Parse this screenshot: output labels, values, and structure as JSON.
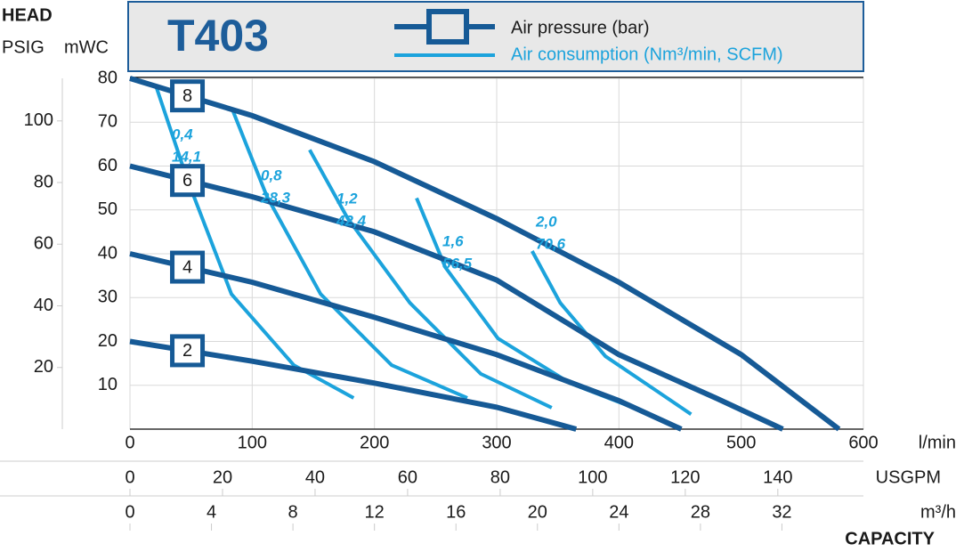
{
  "chart_data": {
    "type": "line",
    "title": "T403",
    "head_label": "HEAD",
    "psig_label": "PSIG",
    "mwc_label": "mWC",
    "x_label": "l/min",
    "x2_label": "USGPM",
    "x3_label": "m³/h",
    "capacity_label": "CAPACITY",
    "legend": {
      "pressure": "Air pressure (bar)",
      "consumption": "Air consumption (Nm³/min, SCFM)"
    },
    "pressure_color": "#165a96",
    "consumption_color": "#1ca3dc",
    "grid": true,
    "xlim": [
      0,
      600
    ],
    "xticks": [
      0,
      100,
      200,
      300,
      400,
      500,
      600
    ],
    "x2lim": [
      0,
      158.5
    ],
    "x2ticks": [
      0,
      20,
      40,
      60,
      80,
      100,
      120,
      140
    ],
    "x3lim": [
      0,
      36
    ],
    "x3ticks": [
      0,
      4,
      8,
      12,
      16,
      20,
      24,
      28,
      32
    ],
    "ylim": [
      0,
      80
    ],
    "yticks": [
      10,
      20,
      30,
      40,
      50,
      60,
      70,
      80
    ],
    "psig_lim": [
      0,
      113.8
    ],
    "psig_ticks": [
      20,
      40,
      60,
      80,
      100
    ],
    "pressure_series": [
      {
        "name": "8",
        "x": [
          0,
          100,
          200,
          300,
          400,
          500,
          580
        ],
        "values": [
          80,
          71.5,
          61,
          48,
          33.5,
          17,
          0
        ]
      },
      {
        "name": "6",
        "x": [
          0,
          100,
          200,
          300,
          400,
          480,
          534
        ],
        "values": [
          60,
          53,
          45,
          34,
          17,
          7,
          0
        ]
      },
      {
        "name": "4",
        "x": [
          0,
          100,
          200,
          300,
          400,
          451
        ],
        "values": [
          40,
          33.5,
          25.5,
          17,
          6.5,
          0
        ]
      },
      {
        "name": "2",
        "x": [
          0,
          100,
          200,
          300,
          365
        ],
        "values": [
          20,
          15.5,
          10.5,
          5,
          0
        ]
      }
    ],
    "consumption_series": [
      {
        "name": "0,4",
        "scfm": "14,1",
        "x": [
          21,
          46.6,
          83,
          134,
          183
        ],
        "values": [
          78.5,
          57.2,
          30.8,
          14.6,
          7.1
        ]
      },
      {
        "name": "0,8",
        "scfm": "28,3",
        "x": [
          84.5,
          112,
          156,
          214,
          276
        ],
        "values": [
          72.4,
          53.1,
          30.8,
          14.6,
          7.1
        ]
      },
      {
        "name": "1,2",
        "scfm": "42,4",
        "x": [
          147,
          178,
          229,
          287,
          345
        ],
        "values": [
          63.7,
          48.1,
          28.8,
          12.6,
          4.9
        ]
      },
      {
        "name": "1,6",
        "scfm": "56,5",
        "x": [
          234.5,
          258,
          301,
          360,
          419
        ],
        "values": [
          52.7,
          36.9,
          20.7,
          10.5,
          4.1
        ]
      },
      {
        "name": "2,0",
        "scfm": "70,6",
        "x": [
          329,
          352,
          389,
          432,
          459
        ],
        "values": [
          40.6,
          28.8,
          16.6,
          8.5,
          3.4
        ]
      }
    ]
  }
}
